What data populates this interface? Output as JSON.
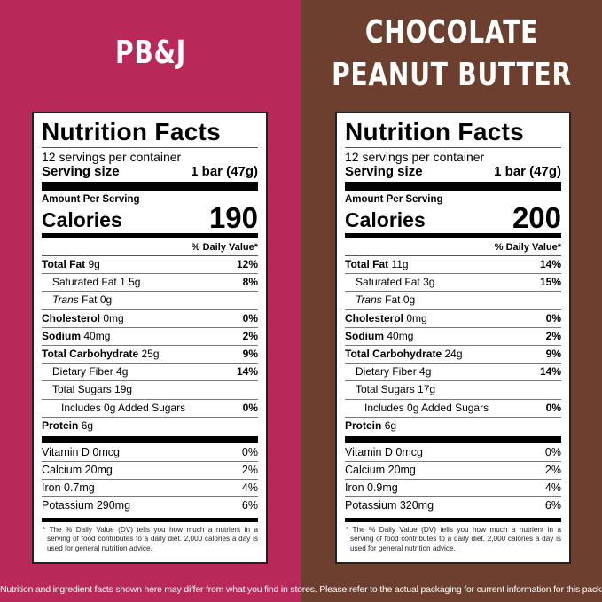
{
  "colors": {
    "left_bg": "#b8295a",
    "right_bg": "#6c3f2e"
  },
  "panels": [
    {
      "title_lines": [
        "PB&J"
      ],
      "label": {
        "heading": "Nutrition Facts",
        "servings": "12 servings per container",
        "serving_size_label": "Serving size",
        "serving_size_value": "1 bar (47g)",
        "amount_per_serving": "Amount Per Serving",
        "calories_label": "Calories",
        "calories_value": "190",
        "dv_header": "% Daily Value*",
        "nutrients": [
          {
            "name": "Total Fat",
            "amount": "9g",
            "dv": "12%",
            "bold": true,
            "indent": 0
          },
          {
            "name": "Saturated Fat",
            "amount": "1.5g",
            "dv": "8%",
            "bold": false,
            "indent": 1
          },
          {
            "name": "Trans",
            "amount": "Fat 0g",
            "dv": "",
            "bold": false,
            "indent": 1,
            "italic": true
          },
          {
            "name": "Cholesterol",
            "amount": "0mg",
            "dv": "0%",
            "bold": true,
            "indent": 0
          },
          {
            "name": "Sodium",
            "amount": "40mg",
            "dv": "2%",
            "bold": true,
            "indent": 0
          },
          {
            "name": "Total Carbohydrate",
            "amount": "25g",
            "dv": "9%",
            "bold": true,
            "indent": 0
          },
          {
            "name": "Dietary Fiber",
            "amount": "4g",
            "dv": "14%",
            "bold": false,
            "indent": 1
          },
          {
            "name": "Total Sugars",
            "amount": "19g",
            "dv": "",
            "bold": false,
            "indent": 1
          },
          {
            "name": "Includes 0g Added Sugars",
            "amount": "",
            "dv": "0%",
            "bold": false,
            "indent": 2
          },
          {
            "name": "Protein",
            "amount": "6g",
            "dv": "",
            "bold": true,
            "indent": 0
          }
        ],
        "micros": [
          {
            "name": "Vitamin D 0mcg",
            "dv": "0%"
          },
          {
            "name": "Calcium 20mg",
            "dv": "2%"
          },
          {
            "name": "Iron 0.7mg",
            "dv": "4%"
          },
          {
            "name": "Potassium 290mg",
            "dv": "6%"
          }
        ],
        "footnote": "* The % Daily Value (DV) tells you how much a nutrient in a serving of food contributes to a daily diet. 2,000 calories a day is used for general nutrition advice."
      }
    },
    {
      "title_lines": [
        "CHOCOLATE",
        "PEANUT BUTTER"
      ],
      "label": {
        "heading": "Nutrition Facts",
        "servings": "12 servings per container",
        "serving_size_label": "Serving size",
        "serving_size_value": "1 bar (47g)",
        "amount_per_serving": "Amount Per Serving",
        "calories_label": "Calories",
        "calories_value": "200",
        "dv_header": "% Daily Value*",
        "nutrients": [
          {
            "name": "Total Fat",
            "amount": "11g",
            "dv": "14%",
            "bold": true,
            "indent": 0
          },
          {
            "name": "Saturated Fat",
            "amount": "3g",
            "dv": "15%",
            "bold": false,
            "indent": 1
          },
          {
            "name": "Trans",
            "amount": "Fat 0g",
            "dv": "",
            "bold": false,
            "indent": 1,
            "italic": true
          },
          {
            "name": "Cholesterol",
            "amount": "0mg",
            "dv": "0%",
            "bold": true,
            "indent": 0
          },
          {
            "name": "Sodium",
            "amount": "40mg",
            "dv": "2%",
            "bold": true,
            "indent": 0
          },
          {
            "name": "Total Carbohydrate",
            "amount": "24g",
            "dv": "9%",
            "bold": true,
            "indent": 0
          },
          {
            "name": "Dietary Fiber",
            "amount": "4g",
            "dv": "14%",
            "bold": false,
            "indent": 1
          },
          {
            "name": "Total Sugars",
            "amount": "17g",
            "dv": "",
            "bold": false,
            "indent": 1
          },
          {
            "name": "Includes 0g Added Sugars",
            "amount": "",
            "dv": "0%",
            "bold": false,
            "indent": 2
          },
          {
            "name": "Protein",
            "amount": "6g",
            "dv": "",
            "bold": true,
            "indent": 0
          }
        ],
        "micros": [
          {
            "name": "Vitamin D 0mcg",
            "dv": "0%"
          },
          {
            "name": "Calcium 20mg",
            "dv": "2%"
          },
          {
            "name": "Iron 0.9mg",
            "dv": "4%"
          },
          {
            "name": "Potassium 320mg",
            "dv": "6%"
          }
        ],
        "footnote": "* The % Daily Value (DV) tells you how much a nutrient in a serving of food contributes to a daily diet. 2,000 calories a day is used for general nutrition advice."
      }
    }
  ],
  "disclaimer": "Nutrition and ingredient facts shown here may differ from what you find in stores. Please refer to the actual packaging for current information for this package."
}
